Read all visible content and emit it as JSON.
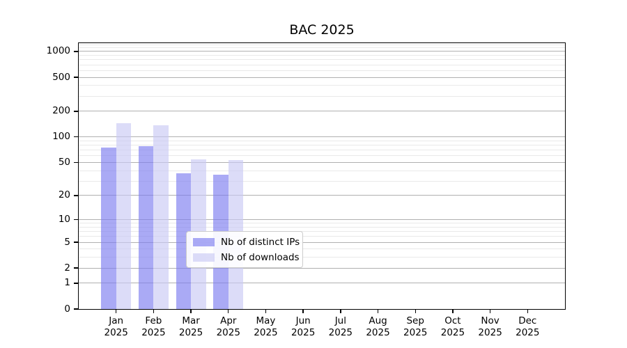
{
  "chart_data": {
    "type": "bar",
    "title": "BAC 2025",
    "categories": [
      "Jan 2025",
      "Feb 2025",
      "Mar 2025",
      "Apr 2025",
      "May 2025",
      "Jun 2025",
      "Jul 2025",
      "Aug 2025",
      "Sep 2025",
      "Oct 2025",
      "Nov 2025",
      "Dec 2025"
    ],
    "series": [
      {
        "name": "Nb of distinct IPs",
        "color": "rgba(124,124,240,0.65)",
        "values": [
          75,
          78,
          37,
          36,
          null,
          null,
          null,
          null,
          null,
          null,
          null,
          null
        ]
      },
      {
        "name": "Nb of downloads",
        "color": "rgba(201,201,245,0.65)",
        "values": [
          145,
          137,
          54,
          53,
          null,
          null,
          null,
          null,
          null,
          null,
          null,
          null
        ]
      }
    ],
    "ylabel": "",
    "xlabel": "",
    "y_scale": "symlog (position proportional to log10(1+v))",
    "y_major_ticks": [
      0,
      1,
      2,
      5,
      10,
      20,
      50,
      100,
      200,
      500,
      1000
    ],
    "y_minor_ticks": [
      3,
      4,
      6,
      7,
      8,
      9,
      30,
      40,
      60,
      70,
      80,
      90,
      300,
      400,
      600,
      700,
      800,
      900,
      1100,
      1200
    ],
    "ylim": [
      0,
      1250
    ],
    "grid": {
      "enabled": true,
      "major_color": "#b0b0b0",
      "minor_color": "#e9e9e9"
    },
    "legend": {
      "position": "lower center"
    },
    "colors": {
      "spine": "#000000",
      "background": "#ffffff",
      "text": "#000000"
    }
  }
}
